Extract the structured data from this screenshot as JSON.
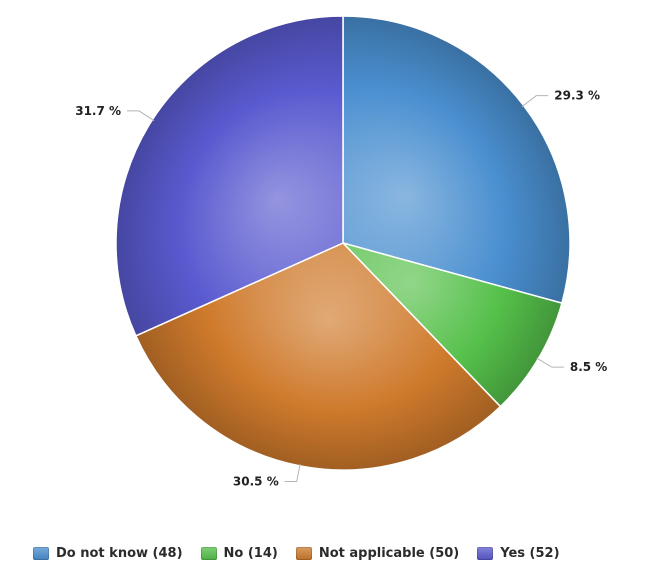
{
  "chart_data": {
    "type": "pie",
    "categories": [
      "Do not know (48)",
      "No (14)",
      "Not applicable (50)",
      "Yes (52)"
    ],
    "values": [
      48,
      14,
      50,
      52
    ],
    "percent_labels": [
      "29.3 %",
      "8.5 %",
      "30.5 %",
      "31.7 %"
    ],
    "colors": [
      "#4a8fd0",
      "#55c04a",
      "#cf7a2c",
      "#5a5ad0"
    ],
    "legend_placement": "bottom"
  }
}
